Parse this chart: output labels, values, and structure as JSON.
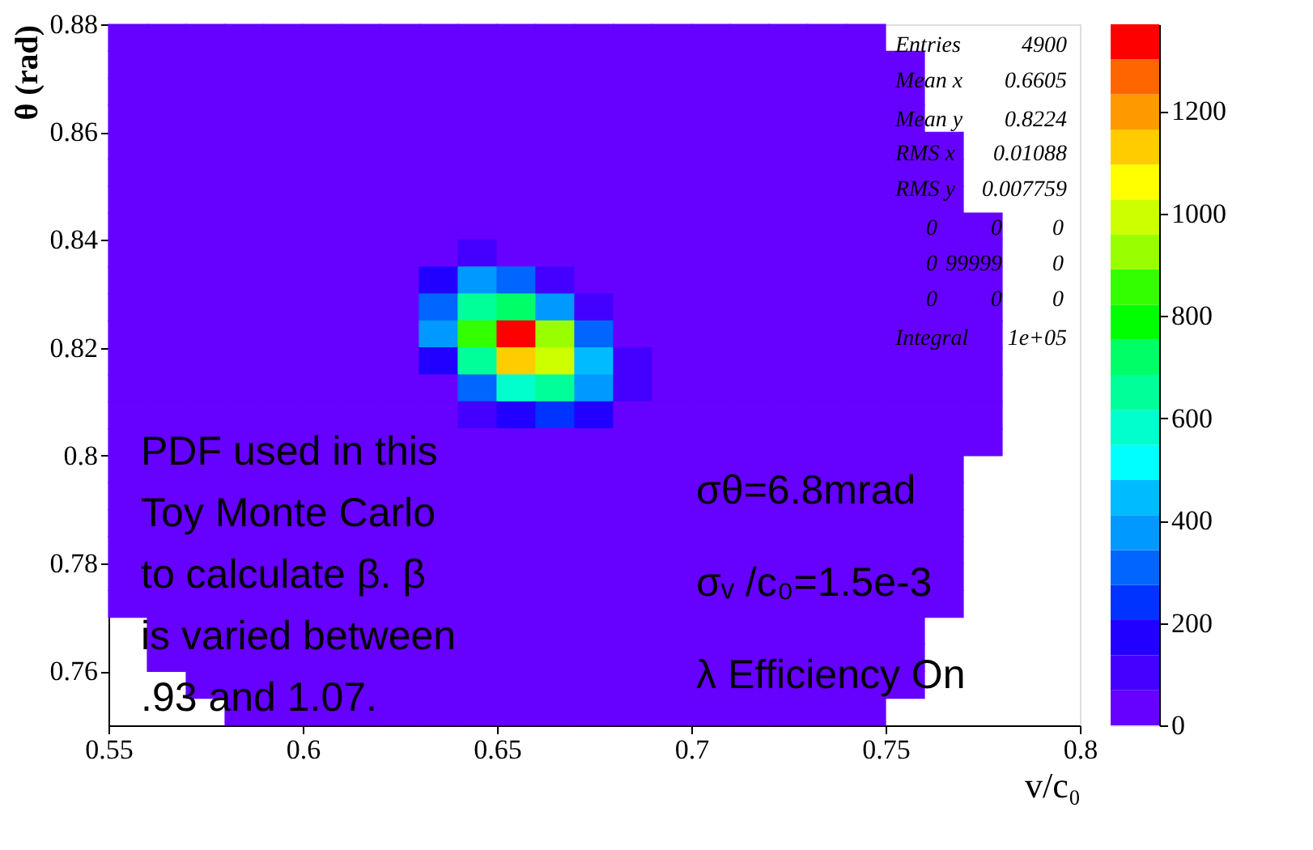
{
  "chart_data": {
    "type": "heatmap",
    "xlabel": "v/c₀",
    "ylabel": "θ (rad)",
    "cells": [
      [
        20,
        20,
        20,
        20,
        20,
        20,
        20,
        20,
        20,
        20,
        20,
        20,
        20,
        20,
        20,
        20,
        20,
        20,
        20,
        20,
        null,
        null,
        null,
        null,
        null
      ],
      [
        20,
        20,
        20,
        20,
        20,
        20,
        20,
        20,
        20,
        20,
        20,
        20,
        20,
        20,
        20,
        20,
        20,
        20,
        20,
        20,
        20,
        null,
        null,
        null,
        null
      ],
      [
        20,
        20,
        20,
        20,
        20,
        20,
        20,
        20,
        20,
        20,
        20,
        20,
        20,
        20,
        20,
        20,
        20,
        20,
        20,
        20,
        20,
        null,
        null,
        null,
        null
      ],
      [
        20,
        20,
        20,
        20,
        20,
        20,
        20,
        20,
        20,
        20,
        20,
        20,
        20,
        20,
        20,
        20,
        20,
        20,
        20,
        20,
        20,
        null,
        null,
        null,
        null
      ],
      [
        20,
        20,
        20,
        20,
        20,
        20,
        20,
        20,
        20,
        20,
        20,
        20,
        20,
        20,
        20,
        20,
        20,
        20,
        20,
        20,
        20,
        20,
        null,
        null,
        null
      ],
      [
        20,
        20,
        20,
        20,
        20,
        20,
        20,
        20,
        20,
        20,
        20,
        20,
        20,
        20,
        20,
        20,
        20,
        20,
        20,
        20,
        20,
        20,
        null,
        null,
        null
      ],
      [
        20,
        20,
        20,
        20,
        20,
        20,
        20,
        20,
        20,
        20,
        20,
        20,
        20,
        20,
        20,
        20,
        20,
        20,
        20,
        20,
        20,
        20,
        null,
        null,
        null
      ],
      [
        20,
        20,
        20,
        20,
        20,
        20,
        20,
        20,
        20,
        20,
        20,
        20,
        20,
        20,
        20,
        20,
        20,
        20,
        20,
        20,
        20,
        20,
        20,
        null,
        null
      ],
      [
        20,
        20,
        20,
        20,
        20,
        20,
        20,
        20,
        20,
        100,
        60,
        20,
        20,
        20,
        20,
        20,
        20,
        20,
        20,
        20,
        20,
        20,
        20,
        null,
        null
      ],
      [
        20,
        20,
        20,
        20,
        20,
        20,
        20,
        20,
        150,
        350,
        300,
        120,
        20,
        20,
        20,
        20,
        20,
        20,
        20,
        20,
        20,
        20,
        20,
        null,
        null
      ],
      [
        20,
        20,
        20,
        20,
        20,
        20,
        20,
        20,
        300,
        650,
        700,
        400,
        100,
        20,
        20,
        20,
        20,
        20,
        20,
        20,
        20,
        20,
        20,
        null,
        null
      ],
      [
        20,
        20,
        20,
        20,
        20,
        20,
        20,
        20,
        350,
        850,
        1330,
        900,
        300,
        20,
        20,
        20,
        20,
        20,
        20,
        20,
        20,
        20,
        20,
        null,
        null
      ],
      [
        20,
        20,
        20,
        20,
        20,
        20,
        20,
        20,
        200,
        650,
        1100,
        1000,
        450,
        80,
        20,
        20,
        20,
        20,
        20,
        20,
        20,
        20,
        20,
        null,
        null
      ],
      [
        20,
        20,
        20,
        20,
        20,
        20,
        20,
        20,
        20,
        300,
        600,
        650,
        350,
        80,
        20,
        20,
        20,
        20,
        20,
        20,
        20,
        20,
        20,
        null,
        null
      ],
      [
        20,
        20,
        20,
        20,
        20,
        20,
        20,
        20,
        20,
        80,
        200,
        250,
        150,
        20,
        20,
        20,
        20,
        20,
        20,
        20,
        20,
        20,
        20,
        null,
        null
      ],
      [
        20,
        20,
        20,
        20,
        20,
        20,
        20,
        20,
        20,
        20,
        20,
        60,
        20,
        20,
        20,
        20,
        20,
        20,
        20,
        20,
        20,
        20,
        20,
        null,
        null
      ],
      [
        20,
        20,
        20,
        20,
        20,
        20,
        20,
        20,
        20,
        20,
        20,
        20,
        20,
        20,
        20,
        20,
        20,
        20,
        20,
        20,
        20,
        20,
        null,
        null,
        null
      ],
      [
        20,
        20,
        20,
        20,
        20,
        20,
        20,
        20,
        20,
        20,
        20,
        20,
        20,
        20,
        20,
        20,
        20,
        20,
        20,
        20,
        20,
        20,
        null,
        null,
        null
      ],
      [
        20,
        20,
        20,
        20,
        20,
        20,
        20,
        20,
        20,
        20,
        20,
        20,
        20,
        20,
        20,
        20,
        20,
        20,
        20,
        20,
        20,
        20,
        null,
        null,
        null
      ],
      [
        20,
        20,
        20,
        20,
        20,
        20,
        20,
        20,
        20,
        20,
        20,
        20,
        20,
        20,
        20,
        20,
        20,
        20,
        20,
        20,
        20,
        20,
        null,
        null,
        null
      ],
      [
        20,
        20,
        20,
        20,
        20,
        20,
        20,
        20,
        20,
        20,
        20,
        20,
        20,
        20,
        20,
        20,
        20,
        20,
        20,
        20,
        20,
        20,
        null,
        null,
        null
      ],
      [
        20,
        20,
        20,
        20,
        20,
        20,
        20,
        20,
        20,
        20,
        20,
        20,
        20,
        20,
        20,
        20,
        20,
        20,
        20,
        20,
        20,
        20,
        null,
        null,
        null
      ],
      [
        null,
        20,
        20,
        20,
        20,
        20,
        20,
        20,
        20,
        20,
        20,
        20,
        20,
        20,
        20,
        20,
        20,
        20,
        20,
        20,
        20,
        null,
        null,
        null,
        null
      ],
      [
        null,
        20,
        20,
        20,
        20,
        20,
        20,
        20,
        20,
        20,
        20,
        20,
        20,
        20,
        20,
        20,
        20,
        20,
        20,
        20,
        20,
        null,
        null,
        null,
        null
      ],
      [
        null,
        null,
        20,
        20,
        20,
        20,
        20,
        20,
        20,
        20,
        20,
        20,
        20,
        20,
        20,
        20,
        20,
        20,
        20,
        20,
        20,
        null,
        null,
        null,
        null
      ],
      [
        null,
        null,
        null,
        20,
        20,
        20,
        20,
        20,
        20,
        20,
        20,
        20,
        20,
        20,
        20,
        20,
        20,
        20,
        20,
        20,
        null,
        null,
        null,
        null,
        null
      ]
    ],
    "colors": [
      "#6600ff",
      "#4400ff",
      "#2200ff",
      "#0033ff",
      "#0066ff",
      "#0099ff",
      "#00bbff",
      "#00ffff",
      "#00ffcc",
      "#00ff99",
      "#00ff66",
      "#00ff00",
      "#33ff00",
      "#99ff00",
      "#ccff00",
      "#ffff00",
      "#ffcc00",
      "#ff9900",
      "#ff6600",
      "#ff0000"
    ],
    "clim": [
      0,
      1370
    ],
    "cticks": [
      0,
      200,
      400,
      600,
      800,
      1000,
      1200
    ],
    "xlim": [
      0.55,
      0.8
    ],
    "xticks": [
      0.55,
      0.6,
      0.65,
      0.7,
      0.75,
      0.8
    ],
    "ylim": [
      0.75,
      0.88
    ],
    "yticks": [
      0.76,
      0.78,
      0.8,
      0.82,
      0.84,
      0.86,
      0.88
    ],
    "grid": false,
    "annotations": [
      "PDF used in this\nToy Monte Carlo\nto calculate β. β\nis varied between\n.93 and 1.07.",
      "σθ=6.8mrad\nσᵥ /c₀=1.5e-3\nλ Efficiency On",
      "Entries",
      "4900",
      "Mean x",
      "0.6605",
      "Mean y",
      "0.8224",
      "RMS x",
      "0.01088",
      "RMS y",
      "0.007759",
      "0",
      "0",
      "0",
      "0",
      "99999",
      "0",
      "0",
      "0",
      "0",
      "Integral",
      "1e+05"
    ]
  }
}
